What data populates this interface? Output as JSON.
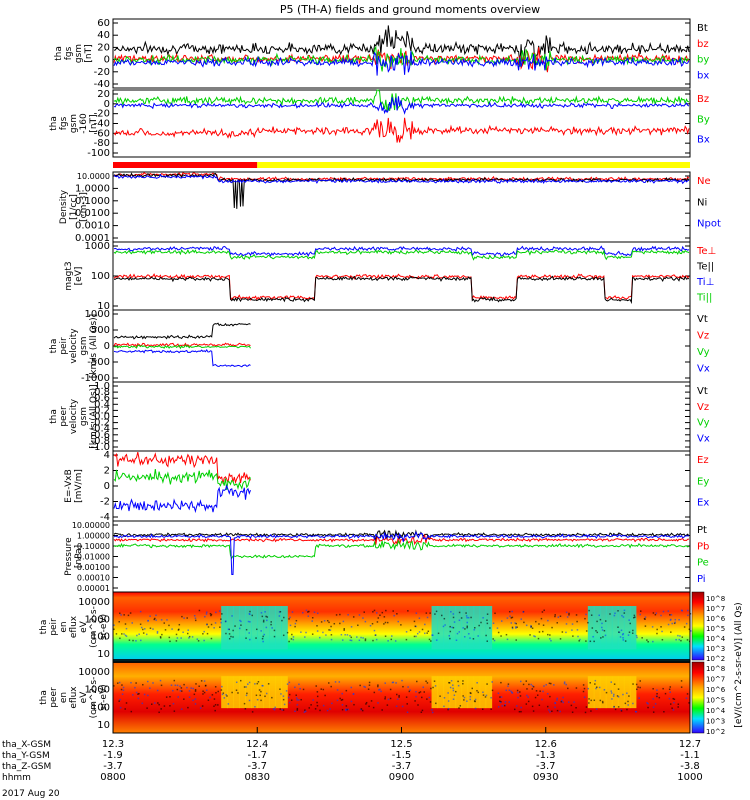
{
  "title": "P5 (TH-A) fields and ground moments overview",
  "colors": {
    "black": "#000000",
    "red": "#ff0000",
    "green": "#00d000",
    "blue": "#0000ff",
    "yellow": "#ffff00"
  },
  "x_axis": {
    "time_labels": [
      "0800",
      "0830",
      "0900",
      "0930",
      "1000"
    ],
    "rows": [
      {
        "name": "tha_X-GSM",
        "values": [
          "12.3",
          "12.4",
          "12.5",
          "12.6",
          "12.7"
        ]
      },
      {
        "name": "tha_Y-GSM",
        "values": [
          "-1.9",
          "-1.7",
          "-1.5",
          "-1.3",
          "-1.1"
        ]
      },
      {
        "name": "tha_Z-GSM",
        "values": [
          "-3.7",
          "-3.7",
          "-3.7",
          "-3.7",
          "-3.8"
        ]
      },
      {
        "name": "hhmm",
        "values": [
          "0800",
          "0830",
          "0900",
          "0930",
          "1000"
        ]
      }
    ],
    "date": "2017 Aug 20"
  },
  "mode_bar": {
    "red_until": 0.25,
    "yellow_after": 0.25
  },
  "colorbar": {
    "label": "[eV/(cm^2-s-sr-eV)] (All Qs)",
    "ticks_top": [
      "10^8",
      "10^7",
      "10^6",
      "10^5",
      "10^4",
      "10^3",
      "10^2"
    ],
    "ticks_bottom": [
      "10^8",
      "10^7",
      "10^6",
      "10^5",
      "10^4",
      "10^3",
      "10^2"
    ]
  },
  "chart_data": [
    {
      "type": "line",
      "ylabel": [
        "tha",
        "fgs",
        "gsm",
        "[nT]"
      ],
      "ytick_labels": [
        "60",
        "40",
        "20",
        "0",
        "-20",
        "-40"
      ],
      "ylim": [
        -45,
        65
      ],
      "series": [
        {
          "name": "Bt",
          "color": "black",
          "level": 18,
          "noise": 4
        },
        {
          "name": "bz",
          "color": "red",
          "level": 2,
          "noise": 3
        },
        {
          "name": "by",
          "color": "green",
          "level": 0,
          "noise": 3
        },
        {
          "name": "bx",
          "color": "blue",
          "level": -4,
          "noise": 3
        }
      ]
    },
    {
      "type": "line",
      "ylabel": [
        "tha",
        "fgs",
        "gsm",
        "-160",
        "[nT]"
      ],
      "ytick_labels": [
        "20",
        "0",
        "-20",
        "-40",
        "-60",
        "-80",
        "-100"
      ],
      "ylim": [
        -110,
        30
      ],
      "series": [
        {
          "name": "Bz",
          "color": "red",
          "level": -55,
          "noise": 5
        },
        {
          "name": "By",
          "color": "green",
          "level": 8,
          "noise": 5
        },
        {
          "name": "Bx",
          "color": "blue",
          "level": -2,
          "noise": 3
        }
      ]
    },
    {
      "type": "line",
      "ylabel": [
        "Density",
        "[1/cc]",
        "[cm-3]"
      ],
      "log": true,
      "ytick_labels": [
        "10.0000",
        "1.0000",
        "0.1000",
        "0.0100",
        "0.0010",
        "0.0001"
      ],
      "ylim": [
        0.0001,
        20
      ],
      "series": [
        {
          "name": "Ne",
          "color": "red"
        },
        {
          "name": "Ni",
          "color": "black"
        },
        {
          "name": "Npot",
          "color": "blue"
        }
      ]
    },
    {
      "type": "line",
      "ylabel": [
        "magt3",
        "[eV]"
      ],
      "log": true,
      "ytick_labels": [
        "1000",
        "100",
        "10"
      ],
      "ylim": [
        5,
        5000
      ],
      "series": [
        {
          "name": "Te⊥",
          "color": "red"
        },
        {
          "name": "Te||",
          "color": "black"
        },
        {
          "name": "Ti⊥",
          "color": "blue"
        },
        {
          "name": "Ti||",
          "color": "green"
        }
      ]
    },
    {
      "type": "line",
      "ylabel": [
        "tha",
        "peir",
        "velocity",
        "gsm",
        "[km/s (All Qs)]"
      ],
      "ytick_labels": [
        "1000",
        "500",
        "0",
        "-500",
        "-1000"
      ],
      "ylim": [
        -1000,
        1000
      ],
      "series": [
        {
          "name": "Vt",
          "color": "black"
        },
        {
          "name": "Vz",
          "color": "red"
        },
        {
          "name": "Vy",
          "color": "green"
        },
        {
          "name": "Vx",
          "color": "blue"
        }
      ]
    },
    {
      "type": "line",
      "ylabel": [
        "tha",
        "peer",
        "velocity",
        "gsm",
        "[km/s (All Qs)]"
      ],
      "ytick_labels": [
        "1.0",
        "0.8",
        "0.6",
        "0.4",
        "0.2",
        "0.0",
        "-0.2",
        "-0.4",
        "-0.6",
        "-0.8",
        "-1.0"
      ],
      "ylim": [
        -1,
        1
      ],
      "series": [
        {
          "name": "Vt",
          "color": "black"
        },
        {
          "name": "Vz",
          "color": "red"
        },
        {
          "name": "Vy",
          "color": "green"
        },
        {
          "name": "Vx",
          "color": "blue"
        }
      ]
    },
    {
      "type": "line",
      "ylabel": [
        "E=-VxB",
        "[mV/m]"
      ],
      "ytick_labels": [
        "4",
        "2",
        "0",
        "-2",
        "-4"
      ],
      "ylim": [
        -4,
        4
      ],
      "series": [
        {
          "name": "Ez",
          "color": "red"
        },
        {
          "name": "Ey",
          "color": "green"
        },
        {
          "name": "Ex",
          "color": "blue"
        }
      ]
    },
    {
      "type": "line",
      "ylabel": [
        "Pressure",
        "[nPa]"
      ],
      "log": true,
      "ytick_labels": [
        "10.00000",
        "1.00000",
        "0.10000",
        "0.01000",
        "0.00100",
        "0.00010",
        "0.00001"
      ],
      "ylim": [
        1e-05,
        10
      ],
      "series": [
        {
          "name": "Pt",
          "color": "black"
        },
        {
          "name": "Pb",
          "color": "red"
        },
        {
          "name": "Pe",
          "color": "green"
        },
        {
          "name": "Pi",
          "color": "blue"
        }
      ]
    },
    {
      "type": "heatmap",
      "ylabel": [
        "tha",
        "peir",
        "en",
        "eflux",
        "eV",
        "(cm^2-s-",
        "sr-eV)"
      ],
      "ytick_labels": [
        "10000",
        "1000",
        "100",
        "10"
      ]
    },
    {
      "type": "heatmap",
      "ylabel": [
        "tha",
        "peer",
        "en",
        "eflux",
        "eV",
        "(cm^2-s-",
        "sr-eV)"
      ],
      "ytick_labels": [
        "10000",
        "1000",
        "100",
        "10"
      ]
    }
  ]
}
